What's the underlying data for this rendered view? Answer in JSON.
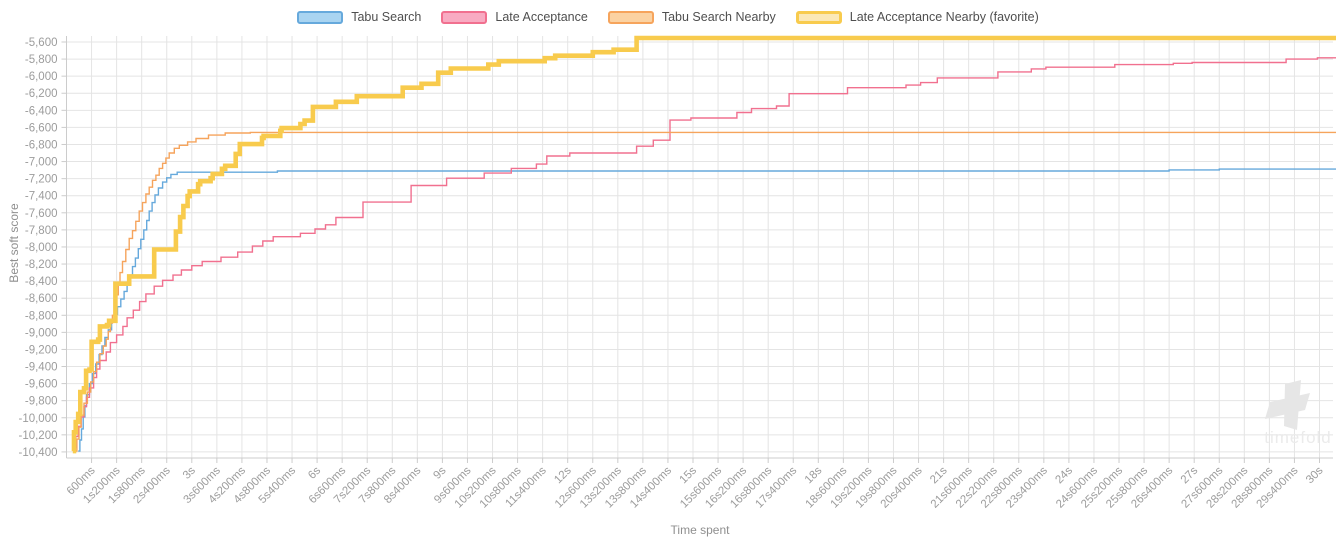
{
  "page": {
    "background": "#ffffff"
  },
  "legend": {
    "items": [
      {
        "label": "Tabu Search",
        "swatch_fill": "#a9d4f1",
        "swatch_border": "#66a9dc",
        "thick": false
      },
      {
        "label": "Late Acceptance",
        "swatch_fill": "#f8abc2",
        "swatch_border": "#f1708f",
        "thick": false
      },
      {
        "label": "Tabu Search Nearby",
        "swatch_fill": "#fbd2a2",
        "swatch_border": "#f6a45c",
        "thick": false
      },
      {
        "label": "Late Acceptance Nearby (favorite)",
        "swatch_fill": "#fbe8b6",
        "swatch_border": "#f8cb4d",
        "thick": true
      }
    ]
  },
  "axes": {
    "y_title": "Best soft score",
    "x_title": "Time spent",
    "y_ticks": [
      "-5,600",
      "-5,800",
      "-6,000",
      "-6,200",
      "-6,400",
      "-6,600",
      "-6,800",
      "-7,000",
      "-7,200",
      "-7,400",
      "-7,600",
      "-7,800",
      "-8,000",
      "-8,200",
      "-8,400",
      "-8,600",
      "-8,800",
      "-9,000",
      "-9,200",
      "-9,400",
      "-9,600",
      "-9,800",
      "-10,000",
      "-10,200",
      "-10,400"
    ],
    "x_ticks": [
      "600ms",
      "1s200ms",
      "1s800ms",
      "2s400ms",
      "3s",
      "3s600ms",
      "4s200ms",
      "4s800ms",
      "5s400ms",
      "6s",
      "6s600ms",
      "7s200ms",
      "7s800ms",
      "8s400ms",
      "9s",
      "9s600ms",
      "10s200ms",
      "10s800ms",
      "11s400ms",
      "12s",
      "12s600ms",
      "13s200ms",
      "13s800ms",
      "14s400ms",
      "15s",
      "15s600ms",
      "16s200ms",
      "16s800ms",
      "17s400ms",
      "18s",
      "18s600ms",
      "19s200ms",
      "19s800ms",
      "20s400ms",
      "21s",
      "21s600ms",
      "22s200ms",
      "22s800ms",
      "23s400ms",
      "24s",
      "24s600ms",
      "25s200ms",
      "25s800ms",
      "26s400ms",
      "27s",
      "27s600ms",
      "28s200ms",
      "28s800ms",
      "29s400ms",
      "30s"
    ],
    "grid_color": "#e4e4e4",
    "axis_color": "#cccccc",
    "tick_label_color": "#9c9c9c"
  },
  "watermark": {
    "text": "timefold",
    "color": "#ebebeb"
  },
  "chart_data": {
    "type": "line",
    "step": "step-after",
    "title": "",
    "xlabel": "Time spent",
    "ylabel": "Best soft score",
    "x_unit": "seconds",
    "xlim": [
      0,
      30.4
    ],
    "ylim": [
      -10400,
      -5500
    ],
    "y_tick_step": 200,
    "x_tick_step_ms": 600,
    "grid": true,
    "legend_position": "top",
    "series": [
      {
        "name": "Tabu Search",
        "color": "#66a9dc",
        "stroke_width": 1.4,
        "final_score": -7088,
        "points": [
          [
            0.28,
            -10390
          ],
          [
            0.32,
            -10260
          ],
          [
            0.36,
            -10130
          ],
          [
            0.4,
            -9990
          ],
          [
            0.44,
            -9860
          ],
          [
            0.48,
            -9730
          ],
          [
            0.55,
            -9600
          ],
          [
            0.62,
            -9480
          ],
          [
            0.7,
            -9370
          ],
          [
            0.78,
            -9260
          ],
          [
            0.85,
            -9160
          ],
          [
            0.92,
            -9060
          ],
          [
            1.0,
            -8970
          ],
          [
            1.08,
            -8880
          ],
          [
            1.15,
            -8790
          ],
          [
            1.22,
            -8700
          ],
          [
            1.3,
            -8610
          ],
          [
            1.38,
            -8520
          ],
          [
            1.45,
            -8420
          ],
          [
            1.52,
            -8330
          ],
          [
            1.58,
            -8230
          ],
          [
            1.65,
            -8130
          ],
          [
            1.72,
            -8020
          ],
          [
            1.78,
            -7910
          ],
          [
            1.85,
            -7800
          ],
          [
            1.92,
            -7690
          ],
          [
            1.98,
            -7580
          ],
          [
            2.05,
            -7480
          ],
          [
            2.12,
            -7390
          ],
          [
            2.2,
            -7310
          ],
          [
            2.3,
            -7240
          ],
          [
            2.4,
            -7190
          ],
          [
            2.5,
            -7150
          ],
          [
            2.65,
            -7125
          ],
          [
            5.05,
            -7110
          ],
          [
            26.4,
            -7098
          ],
          [
            27.6,
            -7088
          ],
          [
            30.4,
            -7088
          ]
        ]
      },
      {
        "name": "Late Acceptance",
        "color": "#f1708f",
        "stroke_width": 1.4,
        "final_score": -5785,
        "points": [
          [
            0.17,
            -10350
          ],
          [
            0.22,
            -10220
          ],
          [
            0.28,
            -10100
          ],
          [
            0.35,
            -9990
          ],
          [
            0.42,
            -9870
          ],
          [
            0.48,
            -9760
          ],
          [
            0.55,
            -9650
          ],
          [
            0.65,
            -9530
          ],
          [
            0.72,
            -9430
          ],
          [
            0.8,
            -9330
          ],
          [
            0.95,
            -9230
          ],
          [
            1.05,
            -9120
          ],
          [
            1.2,
            -9030
          ],
          [
            1.35,
            -8930
          ],
          [
            1.45,
            -8830
          ],
          [
            1.6,
            -8740
          ],
          [
            1.75,
            -8640
          ],
          [
            1.9,
            -8550
          ],
          [
            2.1,
            -8460
          ],
          [
            2.3,
            -8390
          ],
          [
            2.55,
            -8330
          ],
          [
            2.75,
            -8270
          ],
          [
            3.0,
            -8220
          ],
          [
            3.25,
            -8170
          ],
          [
            3.7,
            -8120
          ],
          [
            4.1,
            -8060
          ],
          [
            4.45,
            -7990
          ],
          [
            4.7,
            -7930
          ],
          [
            4.95,
            -7880
          ],
          [
            5.6,
            -7840
          ],
          [
            5.95,
            -7790
          ],
          [
            6.2,
            -7740
          ],
          [
            6.45,
            -7655
          ],
          [
            7.1,
            -7475
          ],
          [
            8.25,
            -7280
          ],
          [
            9.1,
            -7195
          ],
          [
            10.0,
            -7135
          ],
          [
            10.65,
            -7080
          ],
          [
            11.25,
            -7030
          ],
          [
            11.5,
            -6935
          ],
          [
            12.05,
            -6900
          ],
          [
            13.65,
            -6820
          ],
          [
            14.05,
            -6750
          ],
          [
            14.45,
            -6515
          ],
          [
            14.95,
            -6490
          ],
          [
            16.05,
            -6425
          ],
          [
            16.4,
            -6380
          ],
          [
            17.0,
            -6350
          ],
          [
            17.3,
            -6205
          ],
          [
            18.7,
            -6135
          ],
          [
            20.1,
            -6105
          ],
          [
            20.45,
            -6075
          ],
          [
            20.85,
            -6020
          ],
          [
            22.3,
            -5950
          ],
          [
            23.1,
            -5915
          ],
          [
            23.45,
            -5895
          ],
          [
            25.1,
            -5865
          ],
          [
            26.5,
            -5850
          ],
          [
            26.95,
            -5840
          ],
          [
            29.2,
            -5800
          ],
          [
            29.95,
            -5785
          ],
          [
            30.4,
            -5785
          ]
        ]
      },
      {
        "name": "Tabu Search Nearby",
        "color": "#f6a45c",
        "stroke_width": 1.4,
        "final_score": -6658,
        "points": [
          [
            0.2,
            -10390
          ],
          [
            0.25,
            -10250
          ],
          [
            0.3,
            -10110
          ],
          [
            0.35,
            -9970
          ],
          [
            0.42,
            -9830
          ],
          [
            0.5,
            -9700
          ],
          [
            0.58,
            -9580
          ],
          [
            0.65,
            -9460
          ],
          [
            0.72,
            -9350
          ],
          [
            0.8,
            -9250
          ],
          [
            0.88,
            -9160
          ],
          [
            0.95,
            -9080
          ],
          [
            1.0,
            -8990
          ],
          [
            1.05,
            -8890
          ],
          [
            1.1,
            -8800
          ],
          [
            1.15,
            -8700
          ],
          [
            1.2,
            -8560
          ],
          [
            1.24,
            -8420
          ],
          [
            1.28,
            -8300
          ],
          [
            1.34,
            -8170
          ],
          [
            1.42,
            -8030
          ],
          [
            1.5,
            -7900
          ],
          [
            1.58,
            -7810
          ],
          [
            1.66,
            -7700
          ],
          [
            1.74,
            -7580
          ],
          [
            1.82,
            -7480
          ],
          [
            1.9,
            -7380
          ],
          [
            1.98,
            -7300
          ],
          [
            2.06,
            -7220
          ],
          [
            2.14,
            -7160
          ],
          [
            2.22,
            -7080
          ],
          [
            2.3,
            -7020
          ],
          [
            2.38,
            -6960
          ],
          [
            2.46,
            -6900
          ],
          [
            2.58,
            -6845
          ],
          [
            2.7,
            -6810
          ],
          [
            2.9,
            -6770
          ],
          [
            3.1,
            -6730
          ],
          [
            3.4,
            -6690
          ],
          [
            3.8,
            -6665
          ],
          [
            4.4,
            -6658
          ],
          [
            30.4,
            -6658
          ]
        ]
      },
      {
        "name": "Late Acceptance Nearby (favorite)",
        "color": "#f8cb4d",
        "stroke_width": 4.6,
        "final_score": -5553,
        "points": [
          [
            0.15,
            -10390
          ],
          [
            0.18,
            -10170
          ],
          [
            0.22,
            -10050
          ],
          [
            0.28,
            -9955
          ],
          [
            0.33,
            -9700
          ],
          [
            0.42,
            -9655
          ],
          [
            0.47,
            -9450
          ],
          [
            0.55,
            -9435
          ],
          [
            0.6,
            -9110
          ],
          [
            0.76,
            -9085
          ],
          [
            0.8,
            -8930
          ],
          [
            0.97,
            -8915
          ],
          [
            1.02,
            -8865
          ],
          [
            1.17,
            -8430
          ],
          [
            1.5,
            -8345
          ],
          [
            2.1,
            -8030
          ],
          [
            2.62,
            -7820
          ],
          [
            2.72,
            -7650
          ],
          [
            2.8,
            -7520
          ],
          [
            2.9,
            -7405
          ],
          [
            2.95,
            -7350
          ],
          [
            3.15,
            -7265
          ],
          [
            3.2,
            -7230
          ],
          [
            3.45,
            -7195
          ],
          [
            3.5,
            -7145
          ],
          [
            3.72,
            -7085
          ],
          [
            3.8,
            -7050
          ],
          [
            4.05,
            -6910
          ],
          [
            4.15,
            -6795
          ],
          [
            4.68,
            -6723
          ],
          [
            4.72,
            -6700
          ],
          [
            5.12,
            -6640
          ],
          [
            5.15,
            -6608
          ],
          [
            5.6,
            -6560
          ],
          [
            5.7,
            -6520
          ],
          [
            5.9,
            -6360
          ],
          [
            6.45,
            -6300
          ],
          [
            6.95,
            -6235
          ],
          [
            8.05,
            -6135
          ],
          [
            8.5,
            -6090
          ],
          [
            8.9,
            -5960
          ],
          [
            9.2,
            -5910
          ],
          [
            10.1,
            -5865
          ],
          [
            10.35,
            -5825
          ],
          [
            11.45,
            -5790
          ],
          [
            11.7,
            -5760
          ],
          [
            12.6,
            -5720
          ],
          [
            13.1,
            -5690
          ],
          [
            13.65,
            -5553
          ],
          [
            30.4,
            -5553
          ]
        ]
      }
    ]
  }
}
